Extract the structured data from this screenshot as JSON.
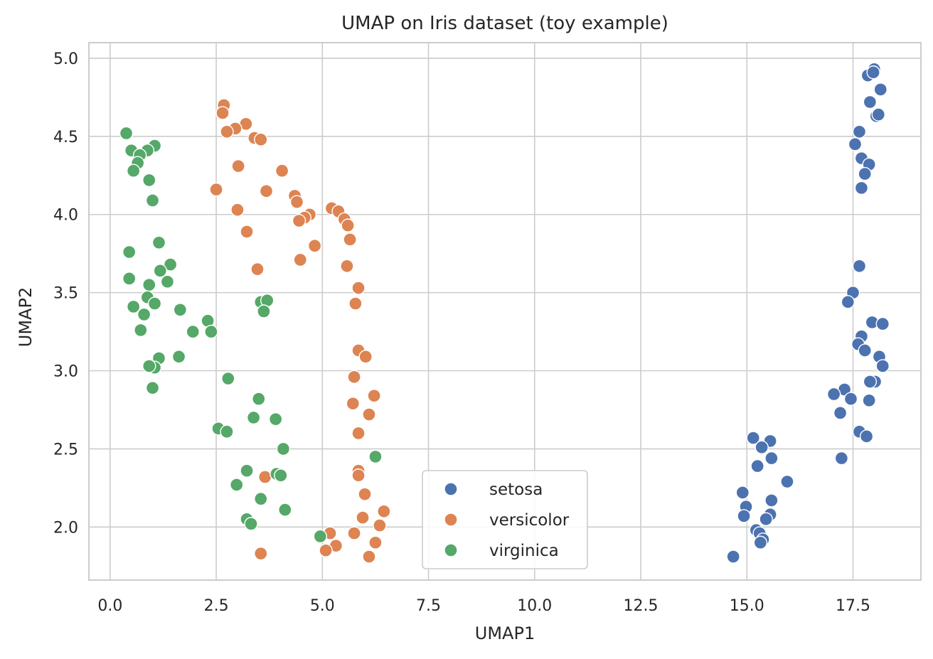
{
  "chart_data": {
    "type": "scatter",
    "title": "UMAP on Iris dataset (toy example)",
    "xlabel": "UMAP1",
    "ylabel": "UMAP2",
    "xlim": [
      -0.5,
      19.1
    ],
    "ylim": [
      1.66,
      5.1
    ],
    "xticks": [
      0.0,
      2.5,
      5.0,
      7.5,
      10.0,
      12.5,
      15.0,
      17.5
    ],
    "yticks": [
      2.0,
      2.5,
      3.0,
      3.5,
      4.0,
      4.5,
      5.0
    ],
    "grid": true,
    "legend_position": "bottom-center",
    "series": [
      {
        "name": "setosa",
        "color": "#4c72b0",
        "points": [
          [
            18.0,
            4.93
          ],
          [
            17.85,
            4.89
          ],
          [
            17.98,
            4.91
          ],
          [
            18.15,
            4.8
          ],
          [
            17.9,
            4.72
          ],
          [
            18.05,
            4.63
          ],
          [
            18.1,
            4.64
          ],
          [
            17.65,
            4.53
          ],
          [
            17.55,
            4.45
          ],
          [
            17.7,
            4.36
          ],
          [
            17.88,
            4.32
          ],
          [
            17.78,
            4.26
          ],
          [
            17.7,
            4.17
          ],
          [
            17.65,
            3.67
          ],
          [
            17.5,
            3.5
          ],
          [
            17.38,
            3.44
          ],
          [
            17.95,
            3.31
          ],
          [
            18.2,
            3.3
          ],
          [
            17.7,
            3.22
          ],
          [
            17.62,
            3.17
          ],
          [
            17.78,
            3.13
          ],
          [
            18.12,
            3.09
          ],
          [
            18.2,
            3.03
          ],
          [
            18.02,
            2.93
          ],
          [
            17.9,
            2.93
          ],
          [
            17.3,
            2.88
          ],
          [
            17.05,
            2.85
          ],
          [
            17.45,
            2.82
          ],
          [
            17.88,
            2.81
          ],
          [
            17.2,
            2.73
          ],
          [
            17.65,
            2.61
          ],
          [
            17.82,
            2.58
          ],
          [
            17.23,
            2.44
          ],
          [
            15.15,
            2.57
          ],
          [
            15.55,
            2.55
          ],
          [
            15.35,
            2.51
          ],
          [
            15.58,
            2.44
          ],
          [
            15.25,
            2.39
          ],
          [
            15.95,
            2.29
          ],
          [
            14.9,
            2.22
          ],
          [
            15.58,
            2.17
          ],
          [
            14.98,
            2.13
          ],
          [
            14.93,
            2.07
          ],
          [
            15.55,
            2.08
          ],
          [
            15.45,
            2.05
          ],
          [
            15.22,
            1.98
          ],
          [
            15.3,
            1.96
          ],
          [
            15.38,
            1.92
          ],
          [
            15.32,
            1.9
          ],
          [
            14.68,
            1.81
          ]
        ]
      },
      {
        "name": "versicolor",
        "color": "#dd8452",
        "points": [
          [
            2.68,
            4.7
          ],
          [
            2.65,
            4.65
          ],
          [
            3.2,
            4.58
          ],
          [
            2.95,
            4.55
          ],
          [
            2.75,
            4.53
          ],
          [
            3.4,
            4.49
          ],
          [
            3.55,
            4.48
          ],
          [
            3.02,
            4.31
          ],
          [
            4.05,
            4.28
          ],
          [
            2.5,
            4.16
          ],
          [
            3.68,
            4.15
          ],
          [
            4.35,
            4.12
          ],
          [
            4.4,
            4.08
          ],
          [
            5.22,
            4.04
          ],
          [
            5.38,
            4.02
          ],
          [
            3.0,
            4.03
          ],
          [
            4.7,
            4.0
          ],
          [
            4.58,
            3.98
          ],
          [
            5.52,
            3.97
          ],
          [
            4.45,
            3.96
          ],
          [
            5.6,
            3.93
          ],
          [
            3.22,
            3.89
          ],
          [
            5.65,
            3.84
          ],
          [
            4.82,
            3.8
          ],
          [
            4.48,
            3.71
          ],
          [
            5.58,
            3.67
          ],
          [
            3.47,
            3.65
          ],
          [
            5.85,
            3.53
          ],
          [
            5.78,
            3.43
          ],
          [
            5.85,
            3.13
          ],
          [
            6.02,
            3.09
          ],
          [
            5.75,
            2.96
          ],
          [
            6.22,
            2.84
          ],
          [
            5.72,
            2.79
          ],
          [
            6.1,
            2.72
          ],
          [
            5.85,
            2.6
          ],
          [
            5.85,
            2.36
          ],
          [
            5.85,
            2.33
          ],
          [
            3.65,
            2.32
          ],
          [
            6.0,
            2.21
          ],
          [
            6.45,
            2.1
          ],
          [
            5.95,
            2.06
          ],
          [
            6.35,
            2.01
          ],
          [
            5.18,
            1.96
          ],
          [
            5.75,
            1.96
          ],
          [
            6.25,
            1.9
          ],
          [
            5.32,
            1.88
          ],
          [
            5.08,
            1.85
          ],
          [
            3.55,
            1.83
          ],
          [
            6.1,
            1.81
          ]
        ]
      },
      {
        "name": "virginica",
        "color": "#55a868",
        "points": [
          [
            0.38,
            4.52
          ],
          [
            1.05,
            4.44
          ],
          [
            0.88,
            4.41
          ],
          [
            0.5,
            4.41
          ],
          [
            0.7,
            4.38
          ],
          [
            0.65,
            4.33
          ],
          [
            0.55,
            4.28
          ],
          [
            0.92,
            4.22
          ],
          [
            1.0,
            4.09
          ],
          [
            1.15,
            3.82
          ],
          [
            0.45,
            3.76
          ],
          [
            1.42,
            3.68
          ],
          [
            1.18,
            3.64
          ],
          [
            0.45,
            3.59
          ],
          [
            1.35,
            3.57
          ],
          [
            0.92,
            3.55
          ],
          [
            0.88,
            3.47
          ],
          [
            1.05,
            3.43
          ],
          [
            0.55,
            3.41
          ],
          [
            0.8,
            3.36
          ],
          [
            1.65,
            3.39
          ],
          [
            2.3,
            3.32
          ],
          [
            0.72,
            3.26
          ],
          [
            1.95,
            3.25
          ],
          [
            2.38,
            3.25
          ],
          [
            1.15,
            3.08
          ],
          [
            1.62,
            3.09
          ],
          [
            1.05,
            3.02
          ],
          [
            0.92,
            3.03
          ],
          [
            1.0,
            2.89
          ],
          [
            3.55,
            3.44
          ],
          [
            3.7,
            3.45
          ],
          [
            3.62,
            3.38
          ],
          [
            2.78,
            2.95
          ],
          [
            3.5,
            2.82
          ],
          [
            3.38,
            2.7
          ],
          [
            3.9,
            2.69
          ],
          [
            2.55,
            2.63
          ],
          [
            2.75,
            2.61
          ],
          [
            4.08,
            2.5
          ],
          [
            6.25,
            2.45
          ],
          [
            3.22,
            2.36
          ],
          [
            3.92,
            2.34
          ],
          [
            4.02,
            2.33
          ],
          [
            2.98,
            2.27
          ],
          [
            3.55,
            2.18
          ],
          [
            4.12,
            2.11
          ],
          [
            3.22,
            2.05
          ],
          [
            3.32,
            2.02
          ],
          [
            4.95,
            1.94
          ]
        ]
      }
    ]
  }
}
